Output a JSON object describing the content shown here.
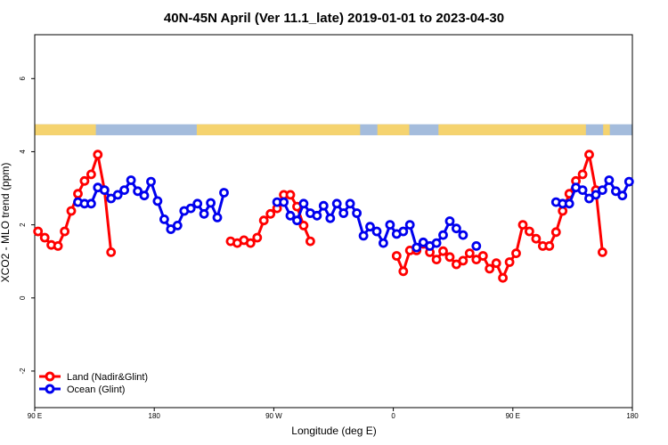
{
  "chart_data": {
    "type": "line",
    "title": "40N-45N April (Ver 11.1_late)   2019-01-01 to 2023-04-30",
    "xlabel": "Longitude (deg E)",
    "ylabel": "XCO2 - MLO trend (ppm)",
    "xlim": [
      90,
      540
    ],
    "ylim": [
      -3,
      7.2
    ],
    "x_ticks": [
      {
        "value": 90,
        "label": "90 E"
      },
      {
        "value": 180,
        "label": "180"
      },
      {
        "value": 270,
        "label": "90 W"
      },
      {
        "value": 360,
        "label": "0"
      },
      {
        "value": 450,
        "label": "90 E"
      },
      {
        "value": 540,
        "label": "180"
      }
    ],
    "y_ticks": [
      {
        "value": -2,
        "label": "-2"
      },
      {
        "value": 0,
        "label": "0"
      },
      {
        "value": 2,
        "label": "2"
      },
      {
        "value": 4,
        "label": "4"
      },
      {
        "value": 6,
        "label": "6"
      }
    ],
    "grid": false,
    "legend_position": "bottom-left",
    "land_ocean_band": {
      "y_range": [
        4.45,
        4.75
      ],
      "land_color": "#f5d36f",
      "ocean_color": "#a4bcdc",
      "land_intervals": [
        [
          90,
          136
        ],
        [
          212,
          335
        ],
        [
          348,
          372
        ],
        [
          394,
          505
        ],
        [
          518,
          523
        ]
      ]
    },
    "series": [
      {
        "name": "Land (Nadir&Glint)",
        "color": "#ff0000",
        "segments": [
          [
            [
              92.5,
              1.82
            ],
            [
              97.5,
              1.65
            ],
            [
              102.5,
              1.45
            ],
            [
              107.5,
              1.42
            ],
            [
              112.5,
              1.82
            ],
            [
              117.5,
              2.38
            ],
            [
              122.5,
              2.85
            ],
            [
              127.5,
              3.2
            ],
            [
              132.5,
              3.38
            ],
            [
              137.5,
              3.92
            ],
            [
              142.5,
              2.95
            ],
            [
              147.5,
              1.25
            ]
          ],
          [
            [
              237.5,
              1.55
            ],
            [
              242.5,
              1.5
            ],
            [
              247.5,
              1.58
            ],
            [
              252.5,
              1.5
            ],
            [
              257.5,
              1.65
            ],
            [
              262.5,
              2.12
            ],
            [
              267.5,
              2.3
            ],
            [
              272.5,
              2.45
            ],
            [
              277.5,
              2.82
            ],
            [
              282.5,
              2.82
            ],
            [
              287.5,
              2.5
            ],
            [
              292.5,
              1.98
            ],
            [
              297.5,
              1.55
            ]
          ],
          [
            [
              362.5,
              1.15
            ],
            [
              367.5,
              0.73
            ],
            [
              372.5,
              1.3
            ],
            [
              377.5,
              1.3
            ],
            [
              382.5,
              1.48
            ],
            [
              387.5,
              1.25
            ],
            [
              392.5,
              1.05
            ],
            [
              397.5,
              1.28
            ],
            [
              402.5,
              1.12
            ],
            [
              407.5,
              0.92
            ],
            [
              412.5,
              1.02
            ],
            [
              417.5,
              1.22
            ],
            [
              422.5,
              1.05
            ],
            [
              427.5,
              1.15
            ],
            [
              432.5,
              0.8
            ],
            [
              437.5,
              0.95
            ],
            [
              442.5,
              0.55
            ],
            [
              447.5,
              0.98
            ],
            [
              452.5,
              1.22
            ],
            [
              457.5,
              2.0
            ],
            [
              462.5,
              1.82
            ],
            [
              467.5,
              1.62
            ],
            [
              472.5,
              1.42
            ],
            [
              477.5,
              1.42
            ],
            [
              482.5,
              1.8
            ],
            [
              487.5,
              2.38
            ],
            [
              492.5,
              2.85
            ],
            [
              497.5,
              3.2
            ],
            [
              502.5,
              3.38
            ],
            [
              507.5,
              3.92
            ],
            [
              512.5,
              2.95
            ],
            [
              517.5,
              1.25
            ]
          ]
        ]
      },
      {
        "name": "Ocean (Glint)",
        "color": "#0000ee",
        "segments": [
          [
            [
              122.5,
              2.62
            ],
            [
              127.5,
              2.58
            ],
            [
              132.5,
              2.58
            ],
            [
              137.5,
              3.02
            ],
            [
              142.5,
              2.95
            ],
            [
              147.5,
              2.72
            ],
            [
              152.5,
              2.82
            ],
            [
              157.5,
              2.95
            ],
            [
              162.5,
              3.22
            ],
            [
              167.5,
              2.92
            ],
            [
              172.5,
              2.8
            ],
            [
              177.5,
              3.18
            ],
            [
              182.5,
              2.65
            ],
            [
              187.5,
              2.15
            ],
            [
              192.5,
              1.88
            ],
            [
              197.5,
              1.98
            ],
            [
              202.5,
              2.38
            ],
            [
              207.5,
              2.45
            ],
            [
              212.5,
              2.58
            ],
            [
              217.5,
              2.3
            ],
            [
              222.5,
              2.6
            ],
            [
              227.5,
              2.2
            ],
            [
              232.5,
              2.88
            ]
          ],
          [
            [
              272.5,
              2.62
            ],
            [
              277.5,
              2.62
            ],
            [
              282.5,
              2.25
            ],
            [
              287.5,
              2.12
            ],
            [
              292.5,
              2.58
            ],
            [
              297.5,
              2.32
            ],
            [
              302.5,
              2.25
            ],
            [
              307.5,
              2.52
            ],
            [
              312.5,
              2.18
            ],
            [
              317.5,
              2.58
            ],
            [
              322.5,
              2.32
            ],
            [
              327.5,
              2.58
            ],
            [
              332.5,
              2.32
            ],
            [
              337.5,
              1.7
            ],
            [
              342.5,
              1.95
            ],
            [
              347.5,
              1.82
            ],
            [
              352.5,
              1.5
            ],
            [
              357.5,
              2.0
            ],
            [
              362.5,
              1.75
            ],
            [
              367.5,
              1.82
            ],
            [
              372.5,
              2.0
            ],
            [
              377.5,
              1.38
            ],
            [
              382.5,
              1.52
            ],
            [
              387.5,
              1.42
            ],
            [
              392.5,
              1.5
            ],
            [
              397.5,
              1.72
            ],
            [
              402.5,
              2.1
            ],
            [
              407.5,
              1.9
            ],
            [
              412.5,
              1.72
            ]
          ],
          [
            [
              422.5,
              1.42
            ]
          ],
          [
            [
              482.5,
              2.62
            ],
            [
              487.5,
              2.58
            ],
            [
              492.5,
              2.58
            ],
            [
              497.5,
              3.02
            ],
            [
              502.5,
              2.95
            ],
            [
              507.5,
              2.72
            ],
            [
              512.5,
              2.82
            ],
            [
              517.5,
              2.95
            ],
            [
              522.5,
              3.22
            ],
            [
              527.5,
              2.92
            ],
            [
              532.5,
              2.8
            ],
            [
              537.5,
              3.18
            ]
          ]
        ]
      }
    ]
  }
}
